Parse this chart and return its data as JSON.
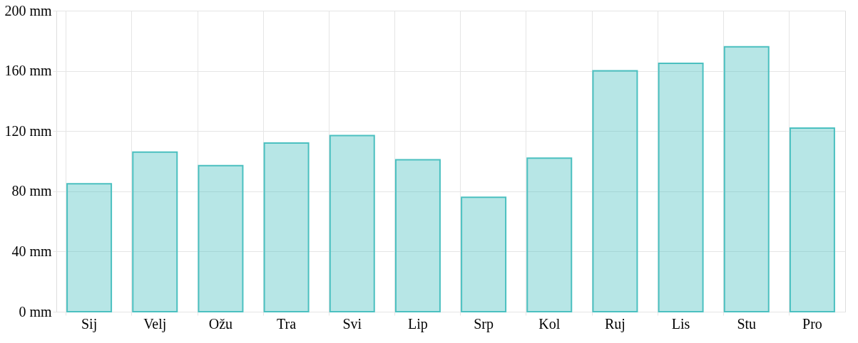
{
  "chart_data": {
    "type": "bar",
    "categories": [
      "Sij",
      "Velj",
      "Ožu",
      "Tra",
      "Svi",
      "Lip",
      "Srp",
      "Kol",
      "Ruj",
      "Lis",
      "Stu",
      "Pro"
    ],
    "values": [
      85,
      106,
      97,
      112,
      117,
      101,
      76,
      102,
      160,
      165,
      176,
      122
    ],
    "color": "#4bc0c0",
    "ylim": [
      0,
      200
    ],
    "yticks": [
      {
        "value": 0,
        "label": "0 mm"
      },
      {
        "value": 40,
        "label": "40 mm"
      },
      {
        "value": 80,
        "label": "80 mm"
      },
      {
        "value": 120,
        "label": "120 mm"
      },
      {
        "value": 160,
        "label": "160 mm"
      },
      {
        "value": 200,
        "label": "200 mm"
      }
    ],
    "grid": true
  }
}
